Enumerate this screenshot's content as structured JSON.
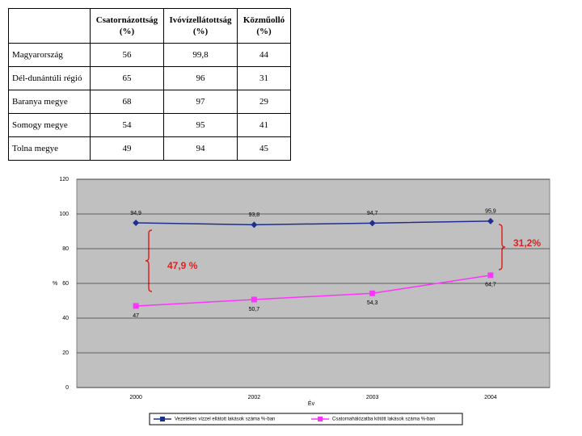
{
  "table": {
    "header": [
      "Csatornázottság (%)",
      "Ivóvízellátottság (%)",
      "Közműolló (%)"
    ],
    "rows": [
      [
        "Magyarország",
        "56",
        "99,8",
        "44"
      ],
      [
        "Dél-dunántúli régió",
        "65",
        "96",
        "31"
      ],
      [
        "Baranya megye",
        "68",
        "97",
        "29"
      ],
      [
        "Somogy megye",
        "54",
        "95",
        "41"
      ],
      [
        "Tolna megye",
        "49",
        "94",
        "45"
      ]
    ]
  },
  "chart_data": {
    "type": "line",
    "x_label": "Év",
    "y_label": "%",
    "categories": [
      "2000",
      "2002",
      "2003",
      "2004"
    ],
    "ylim": [
      0,
      120
    ],
    "yticks": [
      0,
      20,
      40,
      60,
      80,
      100,
      120
    ],
    "grid": true,
    "series": [
      {
        "name": "Vezetékes vízzel ellátott lakások száma %-ban",
        "color": "#1f2f8f",
        "marker": "diamond",
        "values": [
          94.9,
          93.8,
          94.7,
          95.9
        ],
        "value_labels": [
          "94,9",
          "93,8",
          "94,7",
          "95,9"
        ]
      },
      {
        "name": "Csatornahálózatba kötött lakások száma %-ban",
        "color": "#ff33ff",
        "marker": "square",
        "values": [
          47,
          50.7,
          54.3,
          64.7
        ],
        "value_labels": [
          "47",
          "50,7",
          "54,3",
          "64,7"
        ]
      }
    ],
    "annotations": [
      "47,9 %",
      "31,2%"
    ]
  }
}
